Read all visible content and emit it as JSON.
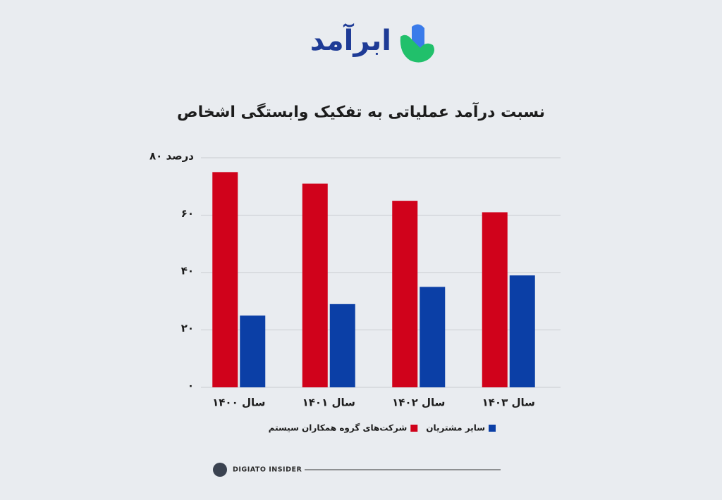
{
  "logo_text": "ابرآمد",
  "footer_text": "DIGIATO INSIDER",
  "chart_data": {
    "type": "bar",
    "title": "نسبت درآمد عملیاتی به تفکیک وابستگی اشخاص",
    "categories": [
      "سال ۱۴۰۰",
      "سال ۱۴۰۱",
      "سال ۱۴۰۲",
      "سال ۱۴۰۳"
    ],
    "series": [
      {
        "name": "شرکت‌های گروه همکاران سیستم",
        "color": "#d0021b",
        "values": [
          75,
          71,
          65,
          61
        ]
      },
      {
        "name": "سایر مشتریان",
        "color": "#0b3fa6",
        "values": [
          25,
          29,
          35,
          39
        ]
      }
    ],
    "ylim": [
      0,
      80
    ],
    "yticks": [
      {
        "value": 0,
        "label": "۰"
      },
      {
        "value": 20,
        "label": "۲۰"
      },
      {
        "value": 40,
        "label": "۴۰"
      },
      {
        "value": 60,
        "label": "۶۰"
      },
      {
        "value": 80,
        "label": "۸۰ درصد"
      }
    ],
    "grid": true
  }
}
